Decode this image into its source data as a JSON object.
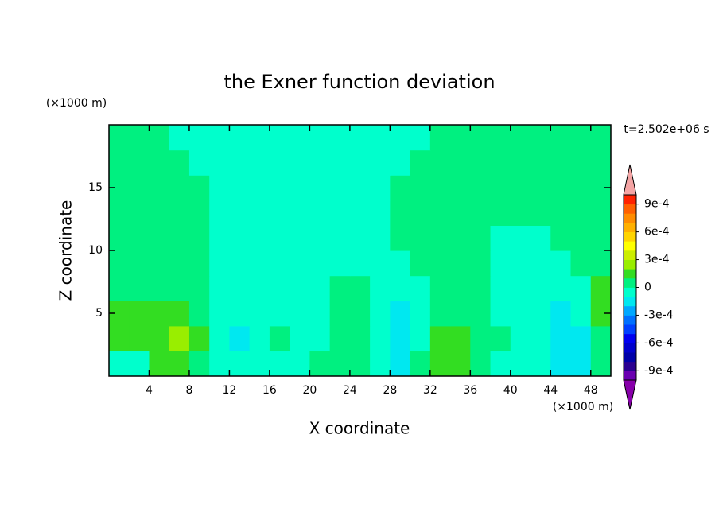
{
  "chart_data": {
    "type": "contour",
    "title": "the Exner function deviation",
    "x_label": "X coordinate",
    "y_label": "Z coordinate",
    "x_unit": "(×1000 m)",
    "y_unit": "(×1000 m)",
    "time_label": "t=2.502e+06 s",
    "xlim": [
      0,
      50
    ],
    "ylim": [
      0,
      20
    ],
    "xticks": [
      4,
      8,
      12,
      16,
      20,
      24,
      28,
      32,
      36,
      40,
      44,
      48
    ],
    "yticks": [
      5,
      10,
      15
    ],
    "x": [
      1,
      3,
      5,
      7,
      9,
      11,
      13,
      15,
      17,
      19,
      21,
      23,
      25,
      27,
      29,
      31,
      33,
      35,
      37,
      39,
      41,
      43,
      45,
      47,
      49
    ],
    "z": [
      1,
      3,
      5,
      7,
      9,
      11,
      13,
      15,
      17,
      19
    ],
    "values": [
      [
        -5e-05,
        -5e-05,
        0.00015,
        0.00015,
        5e-05,
        -5e-05,
        -5e-05,
        -5e-05,
        -5e-05,
        -5e-05,
        5e-05,
        5e-05,
        5e-05,
        -5e-05,
        -0.00015,
        5e-05,
        0.00015,
        0.00015,
        5e-05,
        -5e-05,
        -5e-05,
        -5e-05,
        -0.00015,
        -0.00015,
        5e-05
      ],
      [
        0.00015,
        0.00015,
        0.00015,
        0.00025,
        0.00015,
        -5e-05,
        -0.00015,
        -5e-05,
        5e-05,
        -5e-05,
        -5e-05,
        5e-05,
        5e-05,
        -5e-05,
        -0.00015,
        -5e-05,
        0.00015,
        0.00015,
        5e-05,
        5e-05,
        -5e-05,
        -5e-05,
        -0.00015,
        -0.00015,
        5e-05
      ],
      [
        0.00015,
        0.00015,
        0.00015,
        0.00015,
        5e-05,
        -5e-05,
        -5e-05,
        -5e-05,
        -5e-05,
        -5e-05,
        -5e-05,
        5e-05,
        5e-05,
        -5e-05,
        -0.00015,
        -5e-05,
        5e-05,
        5e-05,
        5e-05,
        -5e-05,
        -5e-05,
        -5e-05,
        -0.00015,
        -5e-05,
        0.00015
      ],
      [
        5e-05,
        5e-05,
        5e-05,
        5e-05,
        5e-05,
        -5e-05,
        -5e-05,
        -5e-05,
        -5e-05,
        -5e-05,
        -5e-05,
        5e-05,
        5e-05,
        -5e-05,
        -5e-05,
        -5e-05,
        5e-05,
        5e-05,
        5e-05,
        -5e-05,
        -5e-05,
        -5e-05,
        -5e-05,
        -5e-05,
        0.00015
      ],
      [
        5e-05,
        5e-05,
        5e-05,
        5e-05,
        5e-05,
        -5e-05,
        -5e-05,
        -5e-05,
        -5e-05,
        -5e-05,
        -5e-05,
        -5e-05,
        -5e-05,
        -5e-05,
        -5e-05,
        5e-05,
        5e-05,
        5e-05,
        5e-05,
        -5e-05,
        -5e-05,
        -5e-05,
        -5e-05,
        5e-05,
        5e-05
      ],
      [
        5e-05,
        5e-05,
        5e-05,
        5e-05,
        5e-05,
        -5e-05,
        -5e-05,
        -5e-05,
        -5e-05,
        -5e-05,
        -5e-05,
        -5e-05,
        -5e-05,
        -5e-05,
        5e-05,
        5e-05,
        5e-05,
        5e-05,
        5e-05,
        -5e-05,
        -5e-05,
        -5e-05,
        5e-05,
        5e-05,
        5e-05
      ],
      [
        5e-05,
        5e-05,
        5e-05,
        5e-05,
        5e-05,
        -5e-05,
        -5e-05,
        -5e-05,
        -5e-05,
        -5e-05,
        -5e-05,
        -5e-05,
        -5e-05,
        -5e-05,
        5e-05,
        5e-05,
        5e-05,
        5e-05,
        5e-05,
        5e-05,
        5e-05,
        5e-05,
        5e-05,
        5e-05,
        5e-05
      ],
      [
        5e-05,
        5e-05,
        5e-05,
        5e-05,
        5e-05,
        -5e-05,
        -5e-05,
        -5e-05,
        -5e-05,
        -5e-05,
        -5e-05,
        -5e-05,
        -5e-05,
        -5e-05,
        5e-05,
        5e-05,
        5e-05,
        5e-05,
        5e-05,
        5e-05,
        5e-05,
        5e-05,
        5e-05,
        5e-05,
        5e-05
      ],
      [
        5e-05,
        5e-05,
        5e-05,
        5e-05,
        -5e-05,
        -5e-05,
        -5e-05,
        -5e-05,
        -5e-05,
        -5e-05,
        -5e-05,
        -5e-05,
        -5e-05,
        -5e-05,
        -5e-05,
        5e-05,
        5e-05,
        5e-05,
        5e-05,
        5e-05,
        5e-05,
        5e-05,
        5e-05,
        5e-05,
        5e-05
      ],
      [
        5e-05,
        5e-05,
        5e-05,
        -5e-05,
        -5e-05,
        -5e-05,
        -5e-05,
        -5e-05,
        -5e-05,
        -5e-05,
        -5e-05,
        -5e-05,
        -5e-05,
        -5e-05,
        -5e-05,
        -5e-05,
        5e-05,
        5e-05,
        5e-05,
        5e-05,
        5e-05,
        5e-05,
        5e-05,
        5e-05,
        5e-05
      ]
    ],
    "levels": [
      -0.001,
      -0.0009,
      -0.0008,
      -0.0007,
      -0.0006,
      -0.0005,
      -0.0004,
      -0.0003,
      -0.0002,
      -0.0001,
      0,
      0.0001,
      0.0002,
      0.0003,
      0.0004,
      0.0005,
      0.0006,
      0.0007,
      0.0008,
      0.0009,
      0.001
    ],
    "colors": [
      "#6a00b0",
      "#2a0090",
      "#0000a8",
      "#0000cc",
      "#0000f0",
      "#0040ff",
      "#0070ff",
      "#00a8ff",
      "#00e8f0",
      "#00ffcc",
      "#00f080",
      "#33dd22",
      "#99ee00",
      "#ccee00",
      "#ffff00",
      "#ffd400",
      "#ffb000",
      "#ff8c00",
      "#ff6000",
      "#ff2200"
    ],
    "extend_colors": [
      "#8800aa",
      "#f4a4a4"
    ],
    "colorbar_ticks": [
      {
        "value": -0.0009,
        "label": "-9e-4"
      },
      {
        "value": -0.0006,
        "label": "-6e-4"
      },
      {
        "value": -0.0003,
        "label": "-3e-4"
      },
      0,
      {
        "value": 0.0003,
        "label": "3e-4"
      },
      {
        "value": 0.0006,
        "label": "6e-4"
      },
      {
        "value": 0.0009,
        "label": "9e-4"
      }
    ]
  }
}
